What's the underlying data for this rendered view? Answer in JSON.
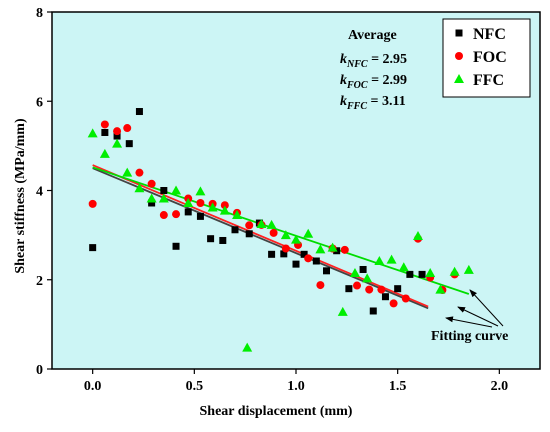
{
  "chart_data": {
    "type": "scatter",
    "title": "",
    "xlabel": "Shear displacement (mm)",
    "ylabel": "Shear stiffness (MPa/mm)",
    "xlim": [
      -0.2,
      2.2
    ],
    "ylim": [
      0,
      8
    ],
    "x_ticks": [
      "0.0",
      "0.5",
      "1.0",
      "1.5",
      "2.0"
    ],
    "y_ticks": [
      "0",
      "2",
      "4",
      "6",
      "8"
    ],
    "x_tick_values": [
      0.0,
      0.5,
      1.0,
      1.5,
      2.0
    ],
    "y_tick_values": [
      0,
      2,
      4,
      6,
      8
    ],
    "grid": false,
    "background": "#ccf5f5",
    "legend_position": "top-right",
    "series": [
      {
        "name": "NFC",
        "marker": "square",
        "color": "#000000",
        "points": [
          [
            0.0,
            2.72
          ],
          [
            0.06,
            5.3
          ],
          [
            0.12,
            5.22
          ],
          [
            0.18,
            5.05
          ],
          [
            0.23,
            5.77
          ],
          [
            0.29,
            3.72
          ],
          [
            0.35,
            4.0
          ],
          [
            0.41,
            2.75
          ],
          [
            0.47,
            3.52
          ],
          [
            0.53,
            3.42
          ],
          [
            0.58,
            2.92
          ],
          [
            0.64,
            2.88
          ],
          [
            0.7,
            3.12
          ],
          [
            0.77,
            3.03
          ],
          [
            0.82,
            3.27
          ],
          [
            0.88,
            2.57
          ],
          [
            0.94,
            2.58
          ],
          [
            1.0,
            2.35
          ],
          [
            1.04,
            2.57
          ],
          [
            1.1,
            2.42
          ],
          [
            1.15,
            2.2
          ],
          [
            1.2,
            2.65
          ],
          [
            1.26,
            1.8
          ],
          [
            1.33,
            2.23
          ],
          [
            1.38,
            1.3
          ],
          [
            1.44,
            1.62
          ],
          [
            1.5,
            1.8
          ],
          [
            1.56,
            2.12
          ],
          [
            1.62,
            2.12
          ]
        ]
      },
      {
        "name": "FOC",
        "marker": "circle",
        "color": "#ff0000",
        "points": [
          [
            0.0,
            3.7
          ],
          [
            0.06,
            5.48
          ],
          [
            0.12,
            5.33
          ],
          [
            0.17,
            5.4
          ],
          [
            0.23,
            4.4
          ],
          [
            0.29,
            4.15
          ],
          [
            0.35,
            3.45
          ],
          [
            0.41,
            3.47
          ],
          [
            0.47,
            3.82
          ],
          [
            0.53,
            3.72
          ],
          [
            0.59,
            3.7
          ],
          [
            0.65,
            3.67
          ],
          [
            0.71,
            3.5
          ],
          [
            0.77,
            3.22
          ],
          [
            0.83,
            3.23
          ],
          [
            0.89,
            3.05
          ],
          [
            0.95,
            2.7
          ],
          [
            1.01,
            2.78
          ],
          [
            1.06,
            2.48
          ],
          [
            1.12,
            1.88
          ],
          [
            1.18,
            2.7
          ],
          [
            1.24,
            2.67
          ],
          [
            1.3,
            1.87
          ],
          [
            1.36,
            1.78
          ],
          [
            1.42,
            1.78
          ],
          [
            1.48,
            1.47
          ],
          [
            1.54,
            1.58
          ],
          [
            1.6,
            2.92
          ],
          [
            1.66,
            2.05
          ],
          [
            1.72,
            1.77
          ],
          [
            1.78,
            2.12
          ]
        ]
      },
      {
        "name": "FFC",
        "marker": "triangle",
        "color": "#00ee00",
        "points": [
          [
            0.0,
            5.28
          ],
          [
            0.06,
            4.82
          ],
          [
            0.12,
            5.05
          ],
          [
            0.17,
            4.4
          ],
          [
            0.23,
            4.05
          ],
          [
            0.29,
            3.82
          ],
          [
            0.35,
            3.82
          ],
          [
            0.41,
            4.0
          ],
          [
            0.47,
            3.72
          ],
          [
            0.53,
            3.98
          ],
          [
            0.59,
            3.62
          ],
          [
            0.65,
            3.55
          ],
          [
            0.71,
            3.45
          ],
          [
            0.76,
            0.48
          ],
          [
            0.83,
            3.25
          ],
          [
            0.88,
            3.23
          ],
          [
            0.95,
            3.0
          ],
          [
            1.0,
            2.9
          ],
          [
            1.06,
            3.03
          ],
          [
            1.12,
            2.68
          ],
          [
            1.18,
            2.72
          ],
          [
            1.23,
            1.28
          ],
          [
            1.29,
            2.15
          ],
          [
            1.35,
            2.03
          ],
          [
            1.41,
            2.42
          ],
          [
            1.47,
            2.45
          ],
          [
            1.53,
            2.28
          ],
          [
            1.6,
            2.98
          ],
          [
            1.66,
            2.15
          ],
          [
            1.71,
            1.78
          ],
          [
            1.78,
            2.18
          ],
          [
            1.85,
            2.22
          ]
        ]
      }
    ],
    "fit_lines": [
      {
        "series": "NFC",
        "color": "#444444",
        "x": [
          0.0,
          1.65
        ],
        "y": [
          4.5,
          1.36
        ]
      },
      {
        "series": "FOC",
        "color": "#ff2222",
        "x": [
          0.0,
          1.65
        ],
        "y": [
          4.57,
          1.4
        ]
      },
      {
        "series": "FFC",
        "color": "#00dd00",
        "x": [
          0.0,
          1.85
        ],
        "y": [
          4.52,
          1.68
        ]
      }
    ],
    "annotations": {
      "average_title": "Average",
      "k_values": [
        {
          "sub": "NFC",
          "text": " = 2.95"
        },
        {
          "sub": "FOC",
          "text": " = 2.99"
        },
        {
          "sub": "FFC",
          "text": " = 3.11"
        }
      ],
      "fitting_label": "Fitting curve"
    }
  }
}
